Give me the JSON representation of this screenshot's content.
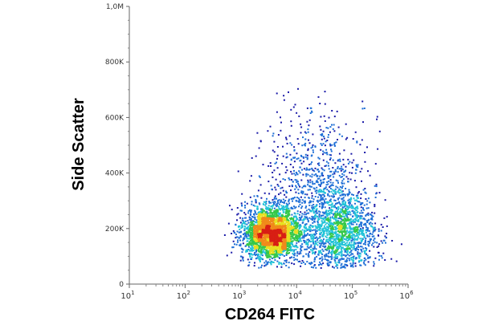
{
  "chart_data": {
    "type": "scatter",
    "subtype": "flow-cytometry density dot plot",
    "xlabel": "CD264 FITC",
    "ylabel": "Side Scatter",
    "x_scale": "log",
    "xlim": [
      10,
      1000000
    ],
    "x_ticks": [
      {
        "value": 10,
        "base": "10",
        "exp": "1"
      },
      {
        "value": 100,
        "base": "10",
        "exp": "2"
      },
      {
        "value": 1000,
        "base": "10",
        "exp": "3"
      },
      {
        "value": 10000,
        "base": "10",
        "exp": "4"
      },
      {
        "value": 100000,
        "base": "10",
        "exp": "5"
      },
      {
        "value": 1000000,
        "base": "10",
        "exp": "6"
      }
    ],
    "y_scale": "linear",
    "ylim": [
      0,
      1000000
    ],
    "y_ticks": [
      {
        "value": 0,
        "label": "0"
      },
      {
        "value": 200000,
        "label": "200K"
      },
      {
        "value": 400000,
        "label": "400K"
      },
      {
        "value": 600000,
        "label": "600K"
      },
      {
        "value": 800000,
        "label": "800K"
      },
      {
        "value": 1000000,
        "label": "1,0M"
      }
    ],
    "grid": false,
    "legend": "none",
    "density_colors": [
      "#1a1aa8",
      "#1f6fd6",
      "#22c3d8",
      "#35c84a",
      "#e8e020",
      "#f08a1a",
      "#d81f14"
    ],
    "populations": [
      {
        "center_x": 3500,
        "center_y": 185000,
        "spread_logx": 0.26,
        "spread_y": 42000,
        "weight": 0.55
      },
      {
        "center_x": 60000,
        "center_y": 190000,
        "spread_logx": 0.33,
        "spread_y": 70000,
        "weight": 0.3
      },
      {
        "center_x": 20000,
        "center_y": 360000,
        "spread_logx": 0.45,
        "spread_y": 110000,
        "weight": 0.15
      }
    ]
  }
}
